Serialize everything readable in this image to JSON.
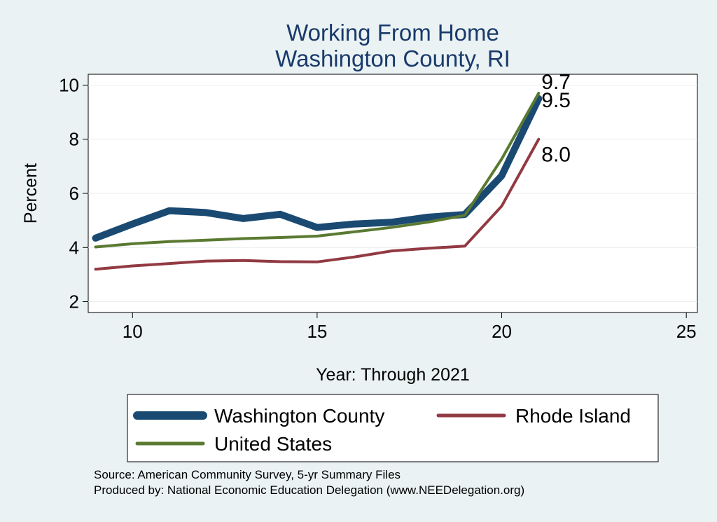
{
  "chart_data": {
    "type": "line",
    "title": [
      "Working From Home",
      "Washington County, RI"
    ],
    "xlabel": "Year: Through 2021",
    "ylabel": "Percent",
    "xlim": [
      8.8,
      25.3
    ],
    "ylim": [
      1.6,
      10.4
    ],
    "x_ticks": [
      10,
      15,
      20,
      25
    ],
    "y_ticks": [
      2,
      4,
      6,
      8,
      10
    ],
    "grid": true,
    "legend_placement": "bottom",
    "series": [
      {
        "name": "Washington County",
        "color": "#1a4a72",
        "width": 10,
        "x": [
          9,
          10,
          11,
          12,
          13,
          14,
          15,
          16,
          17,
          18,
          19,
          20,
          21
        ],
        "y": [
          4.35,
          4.87,
          5.36,
          5.29,
          5.07,
          5.23,
          4.74,
          4.87,
          4.93,
          5.12,
          5.22,
          6.65,
          9.5
        ],
        "end_label": "9.5"
      },
      {
        "name": "Rhode Island",
        "color": "#923a42",
        "width": 4,
        "x": [
          9,
          10,
          11,
          12,
          13,
          14,
          15,
          16,
          17,
          18,
          19,
          20,
          21
        ],
        "y": [
          3.2,
          3.32,
          3.41,
          3.5,
          3.52,
          3.48,
          3.47,
          3.65,
          3.87,
          3.97,
          4.05,
          5.53,
          8.0
        ],
        "end_label": "8.0"
      },
      {
        "name": "United States",
        "color": "#5a7a32",
        "width": 4,
        "x": [
          9,
          10,
          11,
          12,
          13,
          14,
          15,
          16,
          17,
          18,
          19,
          20,
          21
        ],
        "y": [
          4.02,
          4.14,
          4.22,
          4.27,
          4.33,
          4.37,
          4.42,
          4.58,
          4.74,
          4.94,
          5.19,
          7.27,
          9.7
        ],
        "end_label": "9.7"
      }
    ]
  },
  "footnotes": {
    "source": "Source: American Community Survey, 5-yr Summary Files",
    "produced": "Produced by: National Economic Education Delegation (www.NEEDelegation.org)"
  }
}
